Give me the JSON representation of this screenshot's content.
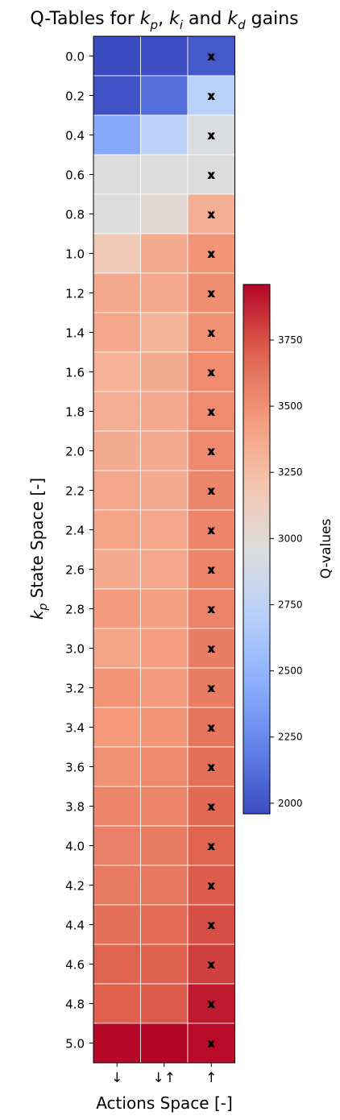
{
  "chart_data": {
    "type": "heatmap",
    "title_parts": [
      {
        "t": "Q-Tables for ",
        "k": "plain"
      },
      {
        "t": "k",
        "k": "italic"
      },
      {
        "t": "p",
        "k": "sub"
      },
      {
        "t": ", ",
        "k": "plain"
      },
      {
        "t": "k",
        "k": "italic"
      },
      {
        "t": "i",
        "k": "sub"
      },
      {
        "t": " and ",
        "k": "plain"
      },
      {
        "t": "k",
        "k": "italic"
      },
      {
        "t": "d",
        "k": "sub"
      },
      {
        "t": " gains",
        "k": "plain"
      }
    ],
    "ylabel_parts": [
      {
        "t": "k",
        "k": "italic"
      },
      {
        "t": "p",
        "k": "sub"
      },
      {
        "t": " State Space [-]",
        "k": "plain"
      }
    ],
    "xlabel": "Actions Space [-]",
    "x_categories": [
      "↓",
      "↓↑",
      "↑"
    ],
    "y_categories": [
      "0.0",
      "0.2",
      "0.4",
      "0.6",
      "0.8",
      "1.0",
      "1.2",
      "1.4",
      "1.6",
      "1.8",
      "2.0",
      "2.2",
      "2.4",
      "2.6",
      "2.8",
      "3.0",
      "3.2",
      "3.4",
      "3.6",
      "3.8",
      "4.0",
      "4.2",
      "4.4",
      "4.6",
      "4.8",
      "5.0"
    ],
    "values": [
      [
        1960,
        1970,
        2020
      ],
      [
        1990,
        2120,
        2720
      ],
      [
        2420,
        2730,
        2940
      ],
      [
        2960,
        2960,
        2960
      ],
      [
        2960,
        3010,
        3340
      ],
      [
        3160,
        3360,
        3480
      ],
      [
        3370,
        3370,
        3510
      ],
      [
        3380,
        3300,
        3500
      ],
      [
        3320,
        3350,
        3520
      ],
      [
        3340,
        3370,
        3520
      ],
      [
        3350,
        3360,
        3530
      ],
      [
        3380,
        3360,
        3540
      ],
      [
        3400,
        3380,
        3550
      ],
      [
        3360,
        3380,
        3550
      ],
      [
        3450,
        3430,
        3560
      ],
      [
        3400,
        3440,
        3580
      ],
      [
        3480,
        3450,
        3590
      ],
      [
        3460,
        3480,
        3620
      ],
      [
        3500,
        3530,
        3640
      ],
      [
        3550,
        3550,
        3670
      ],
      [
        3570,
        3590,
        3690
      ],
      [
        3600,
        3610,
        3720
      ],
      [
        3640,
        3660,
        3760
      ],
      [
        3690,
        3700,
        3800
      ],
      [
        3710,
        3720,
        3900
      ],
      [
        3950,
        3960,
        3940
      ]
    ],
    "marker": "x",
    "marked_column": 2,
    "colorbar": {
      "label": "Q-values",
      "min": 1960,
      "max": 3960,
      "ticks": [
        "2000",
        "2250",
        "2500",
        "2750",
        "3000",
        "3250",
        "3500",
        "3750"
      ],
      "colormap": "coolwarm"
    },
    "grid": true
  }
}
